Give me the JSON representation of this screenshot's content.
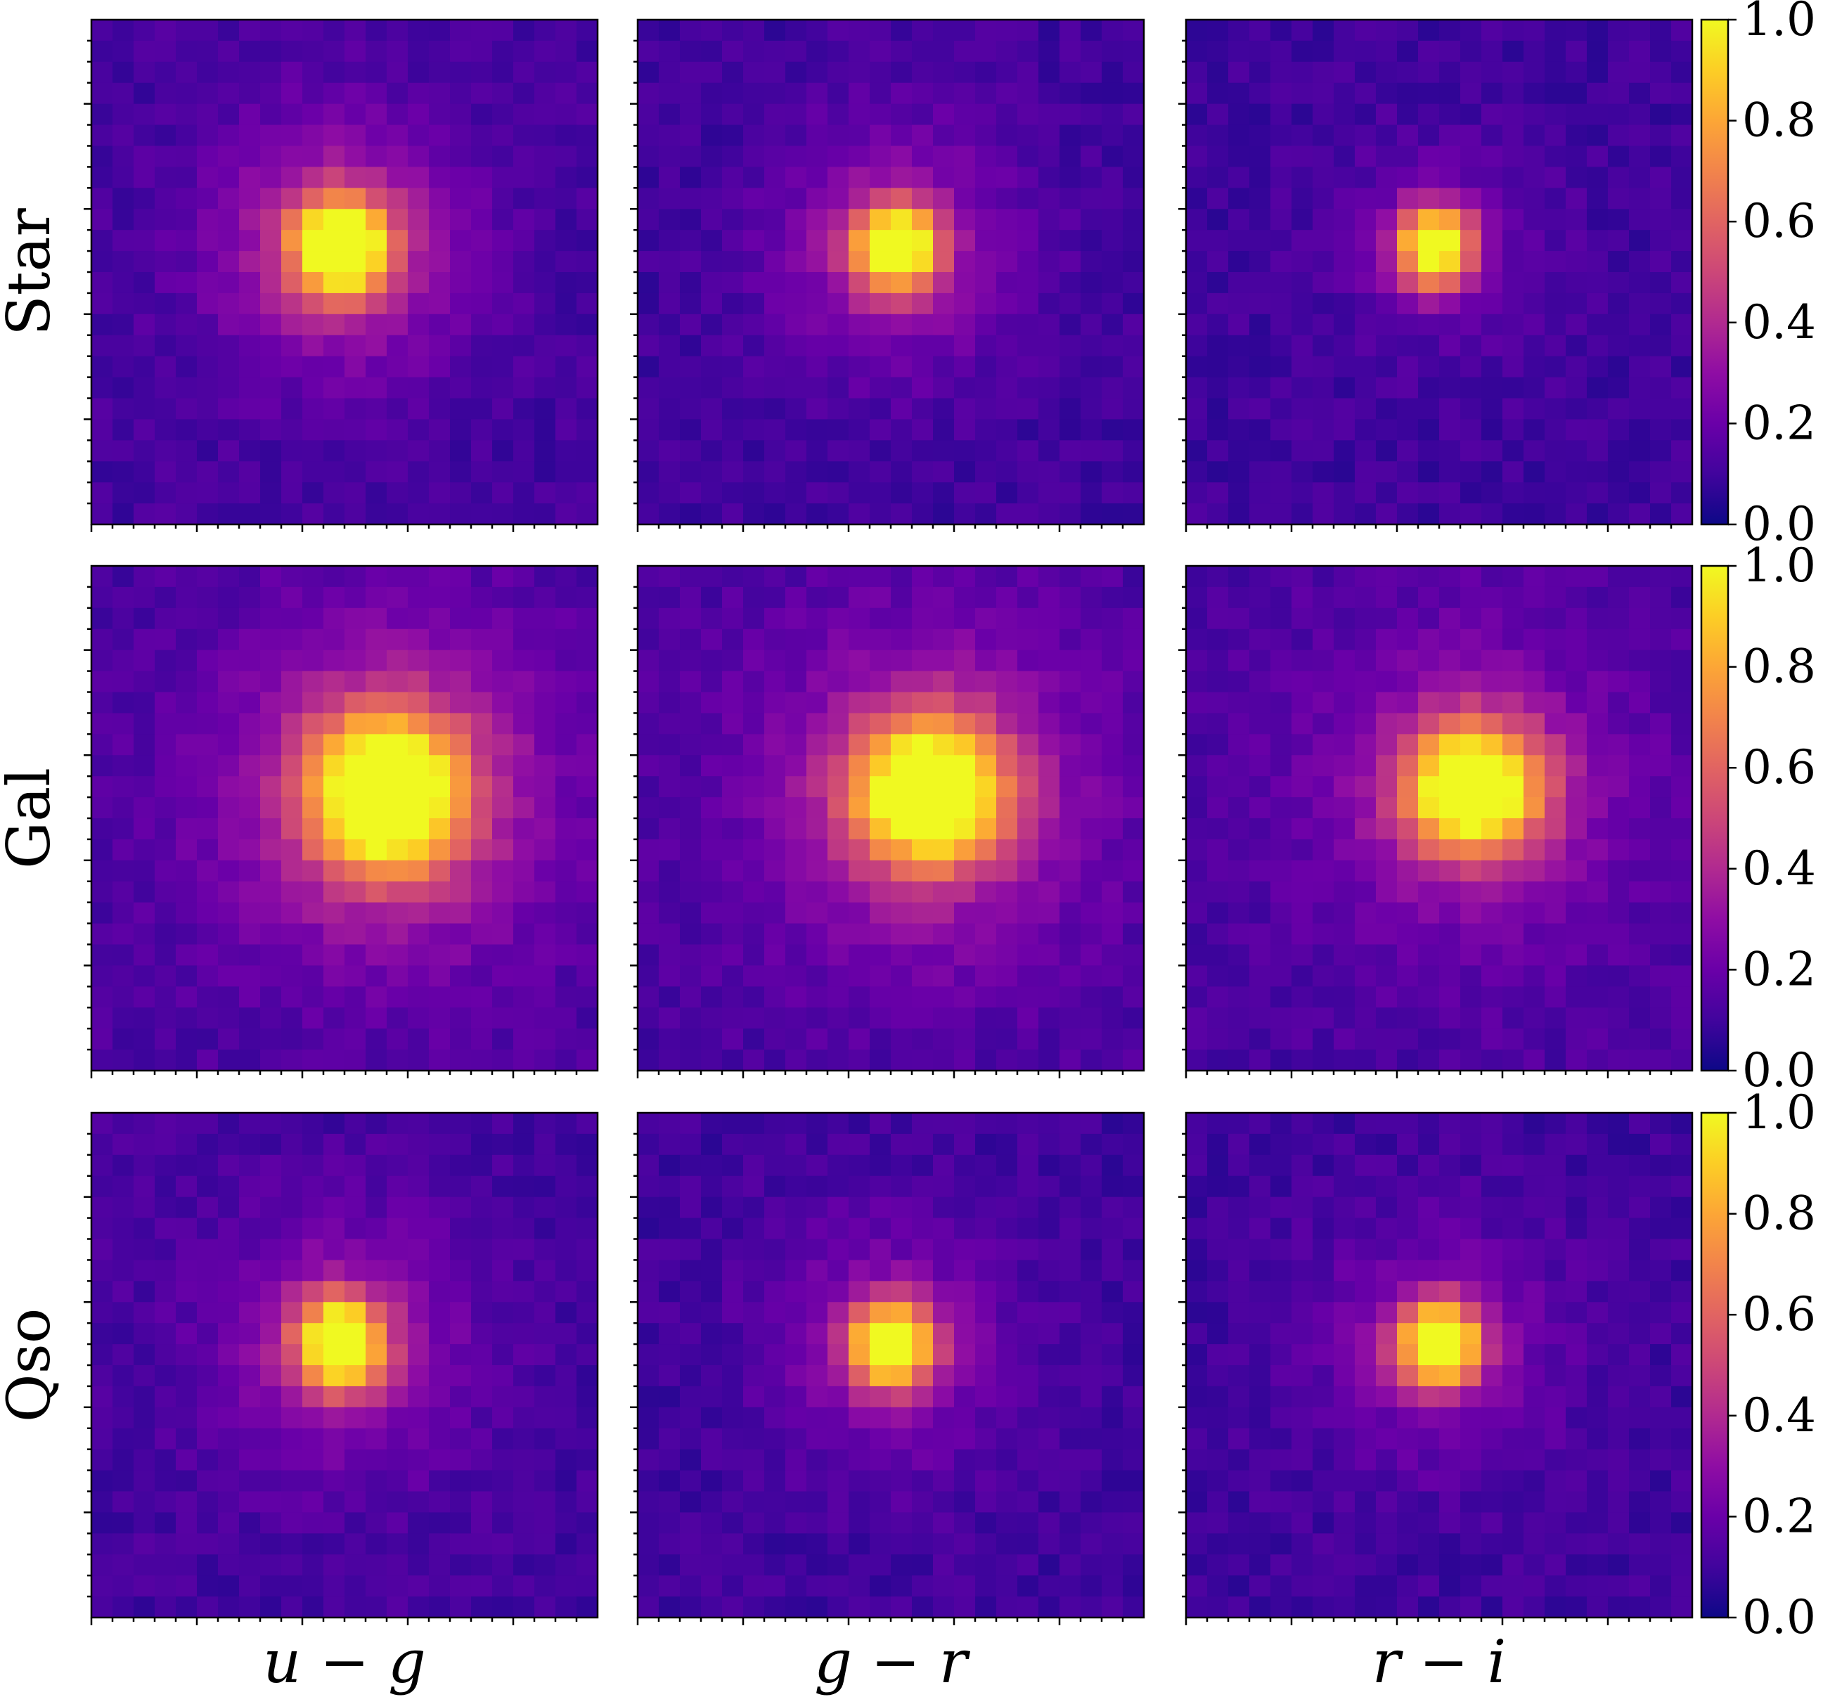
{
  "chart_data": {
    "type": "heatmap",
    "colormap": "plasma",
    "grid": false,
    "rows": [
      "Star",
      "Gal",
      "Qso"
    ],
    "columns": [
      "u − g",
      "g − r",
      "r − i"
    ],
    "colorbar": {
      "range": [
        0.0,
        1.0
      ],
      "ticks": [
        "0.0",
        "0.2",
        "0.4",
        "0.6",
        "0.8",
        "1.0"
      ],
      "placement": "right of each row"
    },
    "grid_size": 24,
    "panels": [
      {
        "row": "Star",
        "column": "u − g",
        "peak_col": 11.8,
        "peak_row": 10.8,
        "sigma_x": 1.5,
        "sigma_y": 1.5,
        "peak": 1.0,
        "halo": 0.35,
        "halo_sigma": 4.0,
        "background": 0.11
      },
      {
        "row": "Star",
        "column": "g − r",
        "peak_col": 12.2,
        "peak_row": 10.8,
        "sigma_x": 1.4,
        "sigma_y": 1.4,
        "peak": 1.0,
        "halo": 0.25,
        "halo_sigma": 4.0,
        "background": 0.1
      },
      {
        "row": "Star",
        "column": "r − i",
        "peak_col": 11.8,
        "peak_row": 10.8,
        "sigma_x": 1.3,
        "sigma_y": 1.4,
        "peak": 1.0,
        "halo": 0.1,
        "halo_sigma": 3.5,
        "background": 0.1
      },
      {
        "row": "Gal",
        "column": "u − g",
        "peak_col": 14.0,
        "peak_row": 10.8,
        "sigma_x": 2.4,
        "sigma_y": 2.5,
        "peak": 1.0,
        "halo": 0.35,
        "halo_sigma": 5.5,
        "background": 0.12
      },
      {
        "row": "Gal",
        "column": "g − r",
        "peak_col": 13.8,
        "peak_row": 10.8,
        "sigma_x": 2.4,
        "sigma_y": 2.3,
        "peak": 1.0,
        "halo": 0.3,
        "halo_sigma": 5.5,
        "background": 0.12
      },
      {
        "row": "Gal",
        "column": "r − i",
        "peak_col": 13.6,
        "peak_row": 10.6,
        "sigma_x": 2.2,
        "sigma_y": 2.1,
        "peak": 1.0,
        "halo": 0.25,
        "halo_sigma": 5.0,
        "background": 0.12
      },
      {
        "row": "Qso",
        "column": "u − g",
        "peak_col": 11.8,
        "peak_row": 11.0,
        "sigma_x": 1.4,
        "sigma_y": 1.5,
        "peak": 1.0,
        "halo": 0.25,
        "halo_sigma": 4.0,
        "background": 0.11
      },
      {
        "row": "Qso",
        "column": "g − r",
        "peak_col": 12.0,
        "peak_row": 11.0,
        "sigma_x": 1.4,
        "sigma_y": 1.4,
        "peak": 1.0,
        "halo": 0.2,
        "halo_sigma": 4.0,
        "background": 0.1
      },
      {
        "row": "Qso",
        "column": "r − i",
        "peak_col": 12.0,
        "peak_row": 11.0,
        "sigma_x": 1.4,
        "sigma_y": 1.4,
        "peak": 1.0,
        "halo": 0.18,
        "halo_sigma": 4.0,
        "background": 0.1
      }
    ]
  }
}
